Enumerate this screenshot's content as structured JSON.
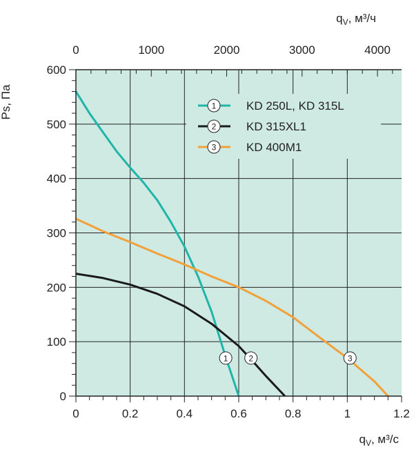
{
  "chart_data": {
    "type": "line",
    "xlabel": "q",
    "xlabel_sub": "V",
    "xlabel_unit": ", м³/с",
    "x2label": "q",
    "x2label_sub": "V",
    "x2label_unit": ", м³/ч",
    "ylabel": "Ps, Па",
    "xlim": [
      0,
      1.2
    ],
    "ylim": [
      0,
      600
    ],
    "x2lim": [
      0,
      4320
    ],
    "x_ticks": [
      0,
      0.2,
      0.4,
      0.6,
      0.8,
      1,
      1.2
    ],
    "x_tick_labels": [
      "0",
      "0.2",
      "0.4",
      "0.6",
      "0.8",
      "1",
      "1.2"
    ],
    "y_ticks": [
      0,
      100,
      200,
      300,
      400,
      500,
      600
    ],
    "y_tick_labels": [
      "0",
      "100",
      "200",
      "300",
      "400",
      "500",
      "600"
    ],
    "x2_ticks": [
      0,
      1000,
      2000,
      3000,
      4000
    ],
    "x2_tick_labels": [
      "0",
      "1000",
      "2000",
      "3000",
      "4000"
    ],
    "grid": true,
    "legend_position": "top-right",
    "background_color": "#cfe9e3",
    "series": [
      {
        "name": "KD 250L, KD 315L",
        "marker": "1",
        "color": "#1fb5a8",
        "marker_point": [
          0.552,
          70
        ],
        "points": [
          [
            0,
            560
          ],
          [
            0.05,
            520
          ],
          [
            0.1,
            485
          ],
          [
            0.15,
            450
          ],
          [
            0.2,
            420
          ],
          [
            0.25,
            392
          ],
          [
            0.3,
            360
          ],
          [
            0.35,
            320
          ],
          [
            0.4,
            275
          ],
          [
            0.45,
            220
          ],
          [
            0.5,
            155
          ],
          [
            0.55,
            75
          ],
          [
            0.6,
            0
          ]
        ]
      },
      {
        "name": "KD 315XL1",
        "marker": "2",
        "color": "#1a1a1a",
        "marker_point": [
          0.645,
          70
        ],
        "points": [
          [
            0,
            225
          ],
          [
            0.1,
            217
          ],
          [
            0.2,
            205
          ],
          [
            0.3,
            188
          ],
          [
            0.4,
            165
          ],
          [
            0.5,
            133
          ],
          [
            0.6,
            92
          ],
          [
            0.65,
            65
          ],
          [
            0.7,
            37
          ],
          [
            0.77,
            0
          ]
        ]
      },
      {
        "name": "KD 400M1",
        "marker": "3",
        "color": "#f2a03a",
        "marker_point": [
          1.01,
          70
        ],
        "points": [
          [
            0,
            326
          ],
          [
            0.1,
            303
          ],
          [
            0.2,
            283
          ],
          [
            0.3,
            262
          ],
          [
            0.4,
            242
          ],
          [
            0.5,
            220
          ],
          [
            0.6,
            200
          ],
          [
            0.7,
            175
          ],
          [
            0.8,
            145
          ],
          [
            0.9,
            107
          ],
          [
            1.0,
            70
          ],
          [
            1.1,
            27
          ],
          [
            1.15,
            0
          ]
        ]
      }
    ]
  }
}
